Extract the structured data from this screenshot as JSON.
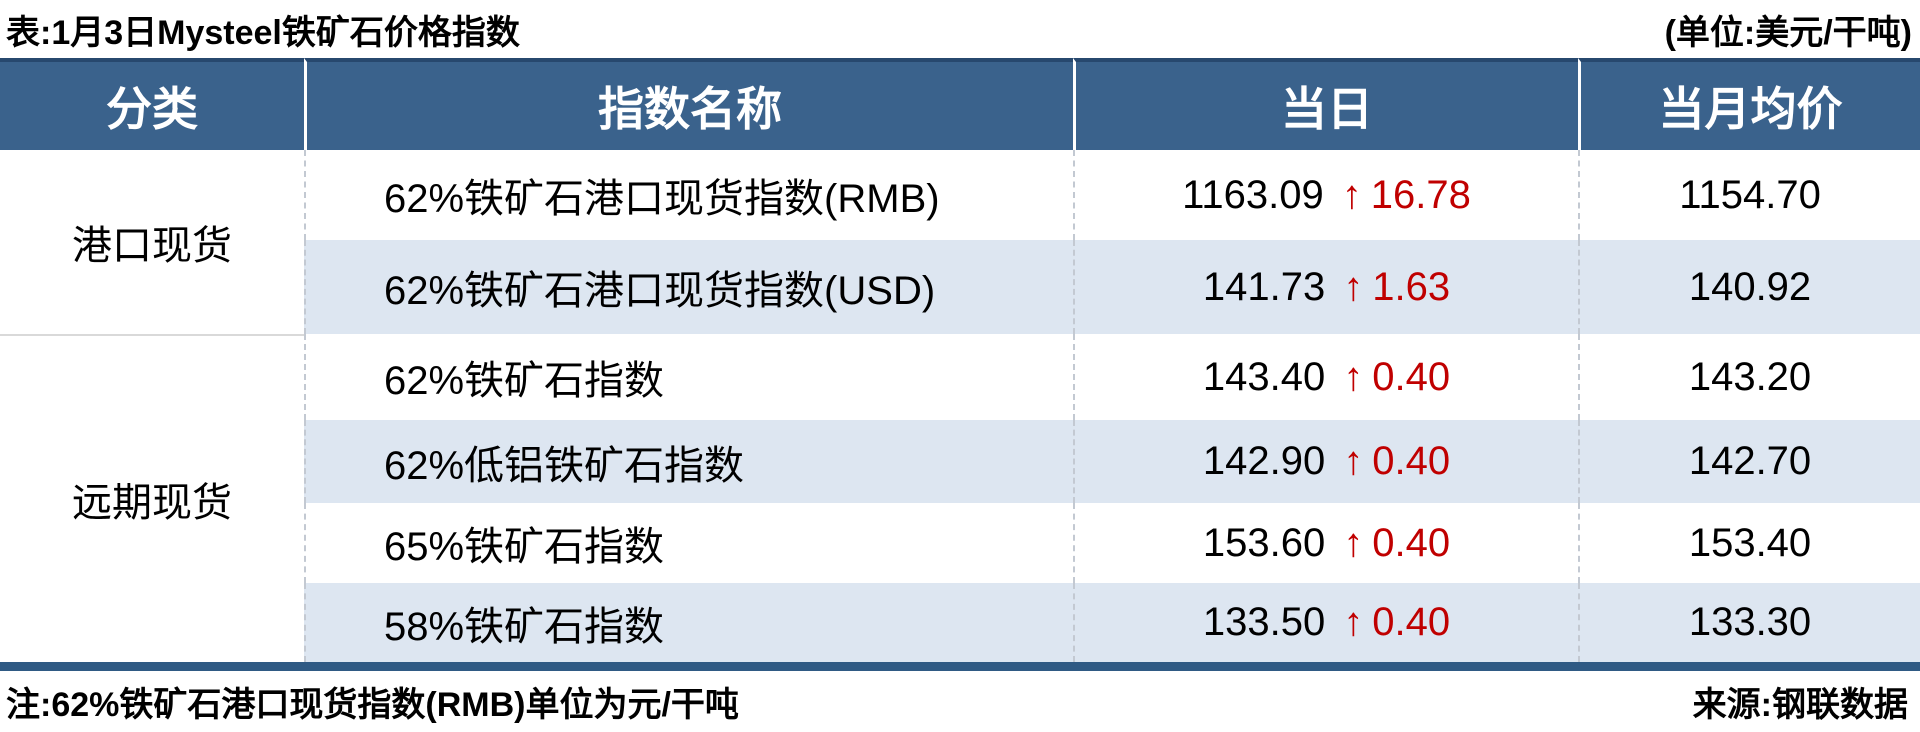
{
  "chart_data": {
    "type": "table",
    "title": "表:1月3日Mysteel铁矿石价格指数",
    "unit_note": "(单位:美元/干吨)",
    "columns": [
      "分类",
      "指数名称",
      "当日",
      "当月均价"
    ],
    "groups": [
      {
        "label": "港口现货",
        "rows": 2
      },
      {
        "label": "远期现货",
        "rows": 4
      }
    ],
    "rows": [
      {
        "category": "港口现货",
        "name": "62%铁矿石港口现货指数(RMB)",
        "daily_value": "1163.09",
        "daily_change_dir": "up",
        "daily_change": "16.78",
        "monthly_avg": "1154.70"
      },
      {
        "category": "港口现货",
        "name": "62%铁矿石港口现货指数(USD)",
        "daily_value": "141.73",
        "daily_change_dir": "up",
        "daily_change": "1.63",
        "monthly_avg": "140.92"
      },
      {
        "category": "远期现货",
        "name": "62%铁矿石指数",
        "daily_value": "143.40",
        "daily_change_dir": "up",
        "daily_change": "0.40",
        "monthly_avg": "143.20"
      },
      {
        "category": "远期现货",
        "name": "62%低铝铁矿石指数",
        "daily_value": "142.90",
        "daily_change_dir": "up",
        "daily_change": "0.40",
        "monthly_avg": "142.70"
      },
      {
        "category": "远期现货",
        "name": "65%铁矿石指数",
        "daily_value": "153.60",
        "daily_change_dir": "up",
        "daily_change": "0.40",
        "monthly_avg": "153.40"
      },
      {
        "category": "远期现货",
        "name": "58%铁矿石指数",
        "daily_value": "133.50",
        "daily_change_dir": "up",
        "daily_change": "0.40",
        "monthly_avg": "133.30"
      }
    ],
    "footnote": "注:62%铁矿石港口现货指数(RMB)单位为元/干吨",
    "source": "来源:钢联数据"
  },
  "icons": {
    "up_arrow": "↑"
  },
  "colors": {
    "header_bg": "#3A628C",
    "header_top_border": "#27486E",
    "stripe_bg": "#DDE6F1",
    "bottom_bar": "#2F5A84",
    "change_up_red": "#C00000",
    "text": "#000000",
    "header_text": "#FFFFFF"
  }
}
